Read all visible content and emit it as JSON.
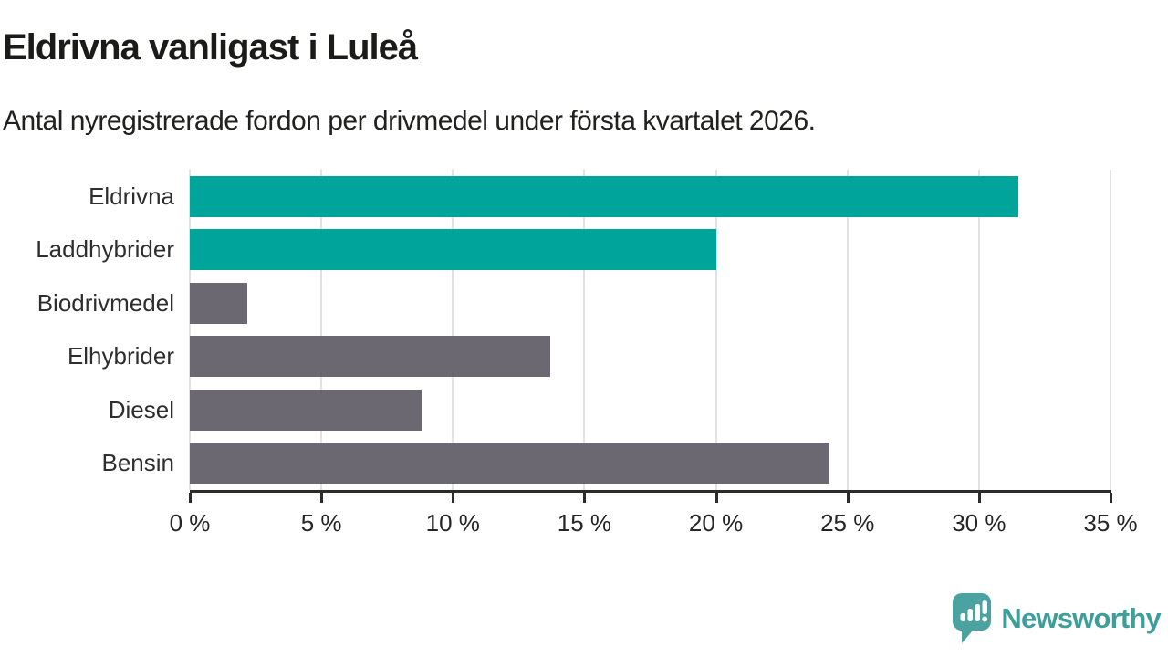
{
  "header": {
    "title": "Eldrivna vanligast i Luleå",
    "subtitle": "Antal nyregistrerade fordon per drivmedel under första kvartalet 2026."
  },
  "chart_data": {
    "type": "bar",
    "orientation": "horizontal",
    "categories": [
      "Eldrivna",
      "Laddhybrider",
      "Biodrivmedel",
      "Elhybrider",
      "Diesel",
      "Bensin"
    ],
    "values": [
      31.5,
      20.0,
      2.2,
      13.7,
      8.8,
      24.3
    ],
    "bar_colors": [
      "#00a49b",
      "#00a49b",
      "#6b6871",
      "#6b6871",
      "#6b6871",
      "#6b6871"
    ],
    "xlim": [
      0,
      35
    ],
    "x_ticks": [
      0,
      5,
      10,
      15,
      20,
      25,
      30,
      35
    ],
    "x_tick_labels": [
      "0 %",
      "5 %",
      "10 %",
      "15 %",
      "20 %",
      "25 %",
      "30 %",
      "35 %"
    ],
    "grid": true,
    "legend": "none",
    "gridline_color": "#e2e2e2",
    "axis_color": "#2b2b2b",
    "highlight_color": "#00a49b",
    "default_color": "#6b6871"
  },
  "footer": {
    "brand": "Newsworthy",
    "brand_color": "#3e9e9a",
    "logo_icon_color": "#4aa2a1",
    "logo_icon": "speech-bubble-bar-chart-icon"
  }
}
